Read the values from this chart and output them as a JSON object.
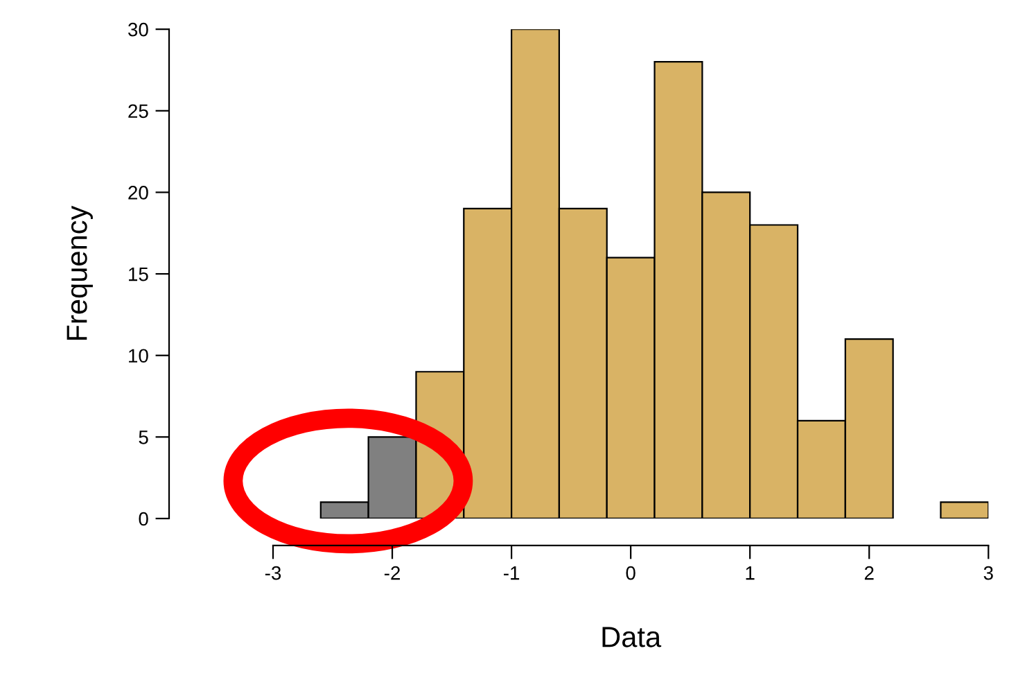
{
  "chart_data": {
    "type": "histogram",
    "xlabel": "Data",
    "ylabel": "Frequency",
    "bins": [
      -2.6,
      -2.2,
      -1.8,
      -1.4,
      -1.0,
      -0.6,
      -0.2,
      0.2,
      0.6,
      1.0,
      1.4,
      1.8,
      2.2,
      2.6,
      3.0
    ],
    "values": [
      1,
      5,
      9,
      19,
      30,
      19,
      16,
      28,
      20,
      18,
      6,
      11,
      0,
      1
    ],
    "colors": [
      "#808080",
      "#808080",
      "#d9b365",
      "#d9b365",
      "#d9b365",
      "#d9b365",
      "#d9b365",
      "#d9b365",
      "#d9b365",
      "#d9b365",
      "#d9b365",
      "#d9b365",
      "#d9b365",
      "#d9b365"
    ],
    "xlim": [
      -3,
      3
    ],
    "ylim": [
      0,
      30
    ],
    "xticks": [
      -3,
      -2,
      -1,
      0,
      1,
      2,
      3
    ],
    "yticks": [
      0,
      5,
      10,
      15,
      20,
      25,
      30
    ],
    "grid": false,
    "legend": false
  }
}
